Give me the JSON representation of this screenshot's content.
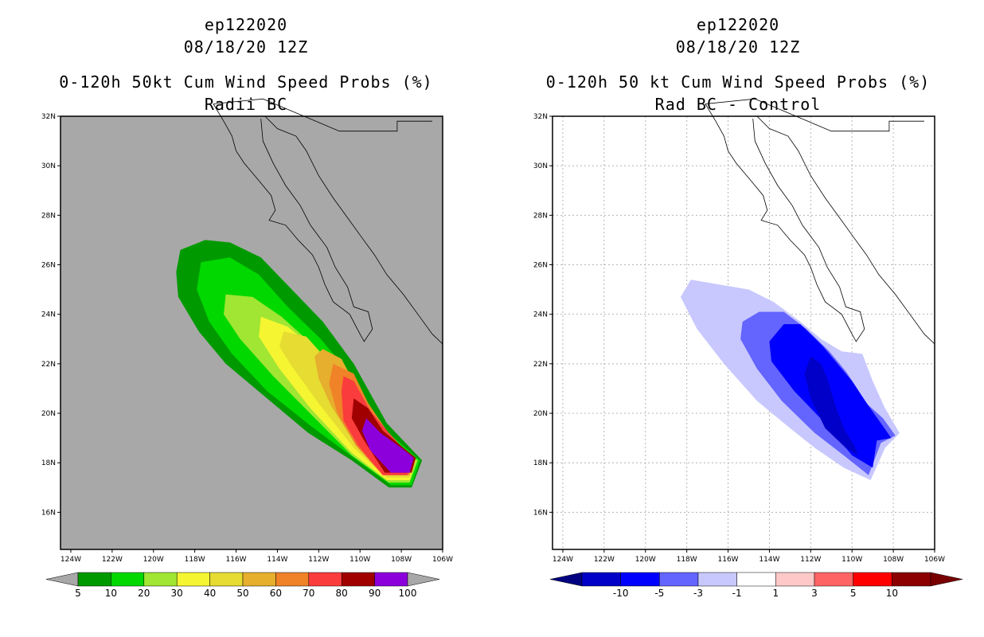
{
  "panels": [
    {
      "title1": "ep122020",
      "title2": "08/18/20 12Z",
      "title3": "0-120h 50kt Cum Wind Speed Probs (%)",
      "title4": "Radii BC",
      "background": "#a8a8a8"
    },
    {
      "title1": "ep122020",
      "title2": "08/18/20 12Z",
      "title3": "0-120h 50 kt Cum Wind Speed Probs (%)",
      "title4": "Rad BC - Control",
      "background": "#ffffff"
    }
  ],
  "chart_data": [
    {
      "type": "heatmap",
      "title": "0-120h 50kt Cum Wind Speed Probs (%) - Radii BC",
      "xlim": [
        -124.5,
        -106
      ],
      "ylim": [
        14.5,
        32
      ],
      "x_ticks": [
        "124W",
        "122W",
        "120W",
        "118W",
        "116W",
        "114W",
        "112W",
        "110W",
        "108W",
        "106W"
      ],
      "y_ticks": [
        "16N",
        "18N",
        "20N",
        "22N",
        "24N",
        "26N",
        "28N",
        "30N",
        "32N"
      ],
      "grid": false,
      "colorbar": {
        "labels": [
          "5",
          "10",
          "20",
          "30",
          "40",
          "50",
          "60",
          "70",
          "80",
          "90",
          "100"
        ],
        "colors": [
          "#009a00",
          "#00d800",
          "#a0e632",
          "#f5f532",
          "#e6dc32",
          "#e6af2d",
          "#f08228",
          "#fa3c3c",
          "#a00000",
          "#8c00dc"
        ],
        "under_color": "#a8a8a8",
        "over_color": "#a8a8a8"
      },
      "contours": [
        {
          "level": 5,
          "color": "#009a00",
          "points": [
            [
              -118.7,
              26.6
            ],
            [
              -117.5,
              27.0
            ],
            [
              -116.3,
              26.9
            ],
            [
              -114.8,
              26.3
            ],
            [
              -113.3,
              25.0
            ],
            [
              -111.8,
              23.7
            ],
            [
              -110.3,
              22.0
            ],
            [
              -108.7,
              19.6
            ],
            [
              -107.0,
              18.1
            ],
            [
              -107.5,
              17.0
            ],
            [
              -108.6,
              17.0
            ],
            [
              -110.4,
              18.1
            ],
            [
              -112.5,
              19.2
            ],
            [
              -114.5,
              20.6
            ],
            [
              -116.5,
              22.0
            ],
            [
              -117.8,
              23.3
            ],
            [
              -118.8,
              24.7
            ],
            [
              -118.9,
              25.7
            ]
          ]
        },
        {
          "level": 10,
          "color": "#00d800",
          "points": [
            [
              -117.7,
              26.1
            ],
            [
              -116.3,
              26.3
            ],
            [
              -114.9,
              25.6
            ],
            [
              -113.5,
              24.3
            ],
            [
              -111.9,
              23.0
            ],
            [
              -110.3,
              21.4
            ],
            [
              -108.9,
              19.4
            ],
            [
              -107.1,
              18.1
            ],
            [
              -107.5,
              17.1
            ],
            [
              -108.5,
              17.1
            ],
            [
              -110.3,
              18.2
            ],
            [
              -112.4,
              19.5
            ],
            [
              -114.5,
              20.9
            ],
            [
              -116.2,
              22.4
            ],
            [
              -117.3,
              23.7
            ],
            [
              -117.9,
              25.0
            ]
          ]
        },
        {
          "level": 20,
          "color": "#a0e632",
          "points": [
            [
              -116.5,
              24.8
            ],
            [
              -115.2,
              24.7
            ],
            [
              -113.8,
              23.9
            ],
            [
              -112.2,
              22.7
            ],
            [
              -110.5,
              21.1
            ],
            [
              -108.9,
              19.2
            ],
            [
              -107.2,
              18.1
            ],
            [
              -107.6,
              17.2
            ],
            [
              -108.6,
              17.2
            ],
            [
              -110.4,
              18.3
            ],
            [
              -112.3,
              19.9
            ],
            [
              -114.2,
              21.5
            ],
            [
              -115.8,
              23.0
            ],
            [
              -116.6,
              24.0
            ]
          ]
        },
        {
          "level": 30,
          "color": "#f5f532",
          "points": [
            [
              -114.8,
              23.9
            ],
            [
              -113.5,
              23.5
            ],
            [
              -111.9,
              22.4
            ],
            [
              -110.3,
              20.7
            ],
            [
              -108.9,
              19.1
            ],
            [
              -107.3,
              18.1
            ],
            [
              -107.6,
              17.3
            ],
            [
              -108.7,
              17.3
            ],
            [
              -110.4,
              18.4
            ],
            [
              -112.4,
              20.2
            ],
            [
              -113.9,
              21.8
            ],
            [
              -114.9,
              23.1
            ]
          ]
        },
        {
          "level": 40,
          "color": "#e6dc32",
          "points": [
            [
              -113.7,
              23.3
            ],
            [
              -112.6,
              23.1
            ],
            [
              -111.2,
              21.8
            ],
            [
              -109.9,
              20.3
            ],
            [
              -108.8,
              19.0
            ],
            [
              -107.4,
              18.1
            ],
            [
              -107.6,
              17.4
            ],
            [
              -108.7,
              17.4
            ],
            [
              -110.3,
              18.6
            ],
            [
              -112.0,
              20.4
            ],
            [
              -113.3,
              21.9
            ],
            [
              -113.9,
              22.7
            ]
          ]
        },
        {
          "level": 50,
          "color": "#e6af2d",
          "points": [
            [
              -111.8,
              22.6
            ],
            [
              -110.9,
              22.2
            ],
            [
              -110.2,
              21.1
            ],
            [
              -109.2,
              19.7
            ],
            [
              -108.6,
              18.9
            ],
            [
              -107.5,
              18.2
            ],
            [
              -107.6,
              17.5
            ],
            [
              -108.8,
              17.5
            ],
            [
              -110.1,
              18.6
            ],
            [
              -111.4,
              20.3
            ],
            [
              -112.0,
              21.4
            ],
            [
              -112.2,
              22.3
            ]
          ]
        },
        {
          "level": 60,
          "color": "#f08228",
          "points": [
            [
              -111.3,
              22.0
            ],
            [
              -110.3,
              21.6
            ],
            [
              -109.6,
              20.4
            ],
            [
              -108.7,
              19.3
            ],
            [
              -107.5,
              18.2
            ],
            [
              -107.6,
              17.5
            ],
            [
              -108.9,
              17.5
            ],
            [
              -110.2,
              18.7
            ],
            [
              -111.1,
              20.0
            ],
            [
              -111.5,
              21.2
            ]
          ]
        },
        {
          "level": 70,
          "color": "#fa3c3c",
          "points": [
            [
              -110.8,
              21.5
            ],
            [
              -110.3,
              21.3
            ],
            [
              -109.5,
              20.1
            ],
            [
              -108.5,
              19.1
            ],
            [
              -107.6,
              18.3
            ],
            [
              -107.7,
              17.5
            ],
            [
              -108.9,
              17.5
            ],
            [
              -110.1,
              18.7
            ],
            [
              -110.8,
              19.7
            ],
            [
              -110.9,
              20.9
            ]
          ]
        },
        {
          "level": 80,
          "color": "#a00000",
          "points": [
            [
              -110.3,
              20.6
            ],
            [
              -109.6,
              20.2
            ],
            [
              -108.9,
              19.3
            ],
            [
              -107.9,
              18.6
            ],
            [
              -107.3,
              18.2
            ],
            [
              -107.5,
              17.6
            ],
            [
              -108.8,
              17.6
            ],
            [
              -109.8,
              18.9
            ],
            [
              -110.4,
              19.8
            ]
          ]
        },
        {
          "level": 90,
          "color": "#8c00dc",
          "points": [
            [
              -109.7,
              19.8
            ],
            [
              -109.0,
              19.2
            ],
            [
              -108.0,
              18.6
            ],
            [
              -107.4,
              18.2
            ],
            [
              -107.6,
              17.6
            ],
            [
              -108.5,
              17.6
            ],
            [
              -109.5,
              18.5
            ],
            [
              -109.9,
              19.3
            ]
          ]
        }
      ]
    },
    {
      "type": "heatmap",
      "title": "0-120h 50 kt Cum Wind Speed Probs (%) - Rad BC - Control",
      "xlim": [
        -124.5,
        -106
      ],
      "ylim": [
        14.5,
        32
      ],
      "x_ticks": [
        "124W",
        "122W",
        "120W",
        "118W",
        "116W",
        "114W",
        "112W",
        "110W",
        "108W",
        "106W"
      ],
      "y_ticks": [
        "16N",
        "18N",
        "20N",
        "22N",
        "24N",
        "26N",
        "28N",
        "30N",
        "32N"
      ],
      "grid": true,
      "colorbar": {
        "labels": [
          "-10",
          "-5",
          "-3",
          "-1",
          "1",
          "3",
          "5",
          "10"
        ],
        "colors": [
          "#0000c8",
          "#0000ff",
          "#6464ff",
          "#c8c8ff",
          "#ffffff",
          "#ffc8c8",
          "#ff6464",
          "#ff0000",
          "#8c0000"
        ],
        "under_color": "#000080",
        "over_color": "#780000"
      },
      "contours": [
        {
          "level": -1,
          "color": "#c8c8ff",
          "points": [
            [
              -117.8,
              25.4
            ],
            [
              -115.0,
              25.0
            ],
            [
              -113.8,
              24.5
            ],
            [
              -112.5,
              23.7
            ],
            [
              -111.5,
              23.0
            ],
            [
              -110.5,
              22.5
            ],
            [
              -109.5,
              22.4
            ],
            [
              -109.0,
              21.3
            ],
            [
              -108.4,
              20.2
            ],
            [
              -107.7,
              19.2
            ],
            [
              -108.4,
              18.6
            ],
            [
              -109.1,
              17.3
            ],
            [
              -110.4,
              17.8
            ],
            [
              -111.8,
              18.6
            ],
            [
              -113.0,
              19.4
            ],
            [
              -114.6,
              20.5
            ],
            [
              -116.2,
              22.0
            ],
            [
              -117.5,
              23.4
            ],
            [
              -118.3,
              24.7
            ]
          ]
        },
        {
          "level": -3,
          "color": "#6464ff",
          "points": [
            [
              -115.3,
              23.7
            ],
            [
              -114.5,
              24.1
            ],
            [
              -113.3,
              24.1
            ],
            [
              -112.2,
              23.4
            ],
            [
              -111.1,
              22.5
            ],
            [
              -110.3,
              21.7
            ],
            [
              -109.9,
              21.2
            ],
            [
              -109.3,
              20.4
            ],
            [
              -108.5,
              19.8
            ],
            [
              -107.9,
              19.1
            ],
            [
              -108.6,
              18.8
            ],
            [
              -109.2,
              17.5
            ],
            [
              -110.4,
              18.3
            ],
            [
              -111.8,
              19.2
            ],
            [
              -113.4,
              20.5
            ],
            [
              -114.6,
              21.8
            ],
            [
              -115.4,
              23.0
            ]
          ]
        },
        {
          "level": -5,
          "color": "#0000ff",
          "points": [
            [
              -114.0,
              22.9
            ],
            [
              -113.3,
              23.6
            ],
            [
              -112.5,
              23.6
            ],
            [
              -111.4,
              22.7
            ],
            [
              -110.7,
              22.0
            ],
            [
              -110.0,
              21.3
            ],
            [
              -109.2,
              20.3
            ],
            [
              -108.6,
              19.6
            ],
            [
              -108.1,
              19.0
            ],
            [
              -108.8,
              18.9
            ],
            [
              -109.0,
              17.8
            ],
            [
              -110.0,
              18.3
            ],
            [
              -111.3,
              19.6
            ],
            [
              -112.8,
              20.9
            ],
            [
              -113.9,
              22.1
            ]
          ]
        },
        {
          "level": -10,
          "color": "#0000c8",
          "points": [
            [
              -112.0,
              22.3
            ],
            [
              -111.5,
              22.0
            ],
            [
              -111.2,
              21.4
            ],
            [
              -110.8,
              20.3
            ],
            [
              -110.4,
              19.4
            ],
            [
              -109.9,
              18.7
            ],
            [
              -109.7,
              18.3
            ],
            [
              -110.3,
              18.6
            ],
            [
              -111.3,
              19.4
            ],
            [
              -112.0,
              20.6
            ],
            [
              -112.3,
              21.6
            ]
          ]
        }
      ]
    }
  ]
}
